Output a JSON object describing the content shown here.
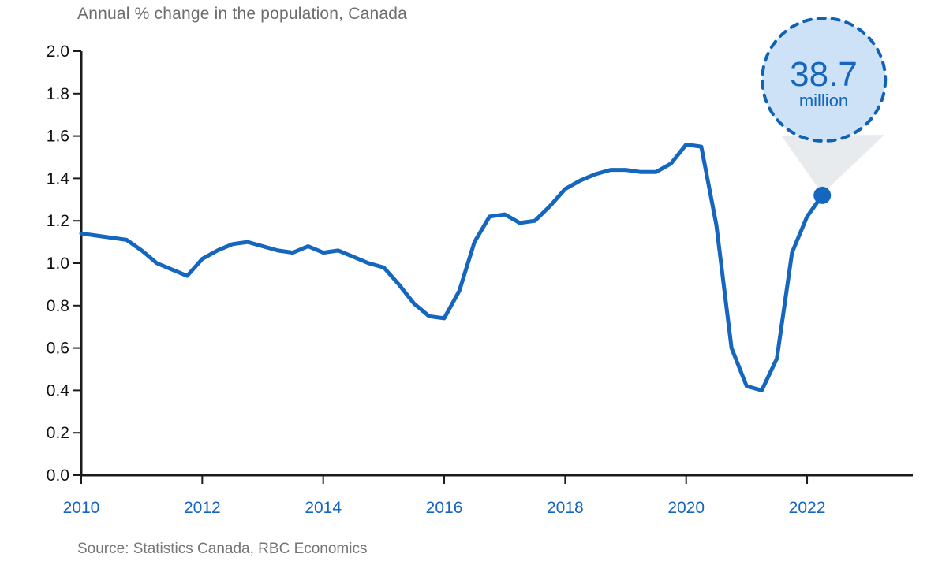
{
  "header": {
    "title": "Annual % change in the population, Canada"
  },
  "footer": {
    "source": "Source: Statistics Canada, RBC Economics"
  },
  "callout": {
    "value": "38.7",
    "unit": "million"
  },
  "colors": {
    "line": "#1466be",
    "axis": "#1b1b1b",
    "y_label": "#111111",
    "x_label": "#1465c0",
    "title": "#6d6d6d",
    "source": "#767676",
    "bubble_fill": "#cde1f7",
    "bubble_stroke": "#0f62b4",
    "callout_text": "#1566c1",
    "cone": "#e8ebee",
    "dot": "#1466be"
  },
  "chart_data": {
    "type": "line",
    "title": "Annual % change in the population, Canada",
    "series_name": "Annual % change in population, Canada (quarterly)",
    "x": [
      2010.0,
      2010.25,
      2010.5,
      2010.75,
      2011.0,
      2011.25,
      2011.5,
      2011.75,
      2012.0,
      2012.25,
      2012.5,
      2012.75,
      2013.0,
      2013.25,
      2013.5,
      2013.75,
      2014.0,
      2014.25,
      2014.5,
      2014.75,
      2015.0,
      2015.25,
      2015.5,
      2015.75,
      2016.0,
      2016.25,
      2016.5,
      2016.75,
      2017.0,
      2017.25,
      2017.5,
      2017.75,
      2018.0,
      2018.25,
      2018.5,
      2018.75,
      2019.0,
      2019.25,
      2019.5,
      2019.75,
      2020.0,
      2020.25,
      2020.5,
      2020.75,
      2021.0,
      2021.25,
      2021.5,
      2021.75,
      2022.0,
      2022.25
    ],
    "values": [
      1.14,
      1.13,
      1.12,
      1.11,
      1.06,
      1.0,
      0.97,
      0.94,
      1.02,
      1.06,
      1.09,
      1.1,
      1.08,
      1.06,
      1.05,
      1.08,
      1.05,
      1.06,
      1.03,
      1.0,
      0.98,
      0.9,
      0.81,
      0.75,
      0.74,
      0.87,
      1.1,
      1.22,
      1.23,
      1.19,
      1.2,
      1.27,
      1.35,
      1.39,
      1.42,
      1.44,
      1.44,
      1.43,
      1.43,
      1.47,
      1.56,
      1.55,
      1.18,
      0.6,
      0.42,
      0.4,
      0.55,
      1.05,
      1.22,
      1.32
    ],
    "x_tick_labels": [
      "2010",
      "2012",
      "2014",
      "2016",
      "2018",
      "2020",
      "2022"
    ],
    "y_tick_labels": [
      "0.0",
      "0.2",
      "0.4",
      "0.6",
      "0.8",
      "1.0",
      "1.2",
      "1.4",
      "1.6",
      "1.8",
      "2.0"
    ],
    "xlim": [
      2010,
      2023.75
    ],
    "ylim": [
      0,
      2.0
    ],
    "grid": false,
    "legend": false,
    "annotation": {
      "x": 2022.25,
      "y": 1.32,
      "label": "38.7 million"
    }
  }
}
